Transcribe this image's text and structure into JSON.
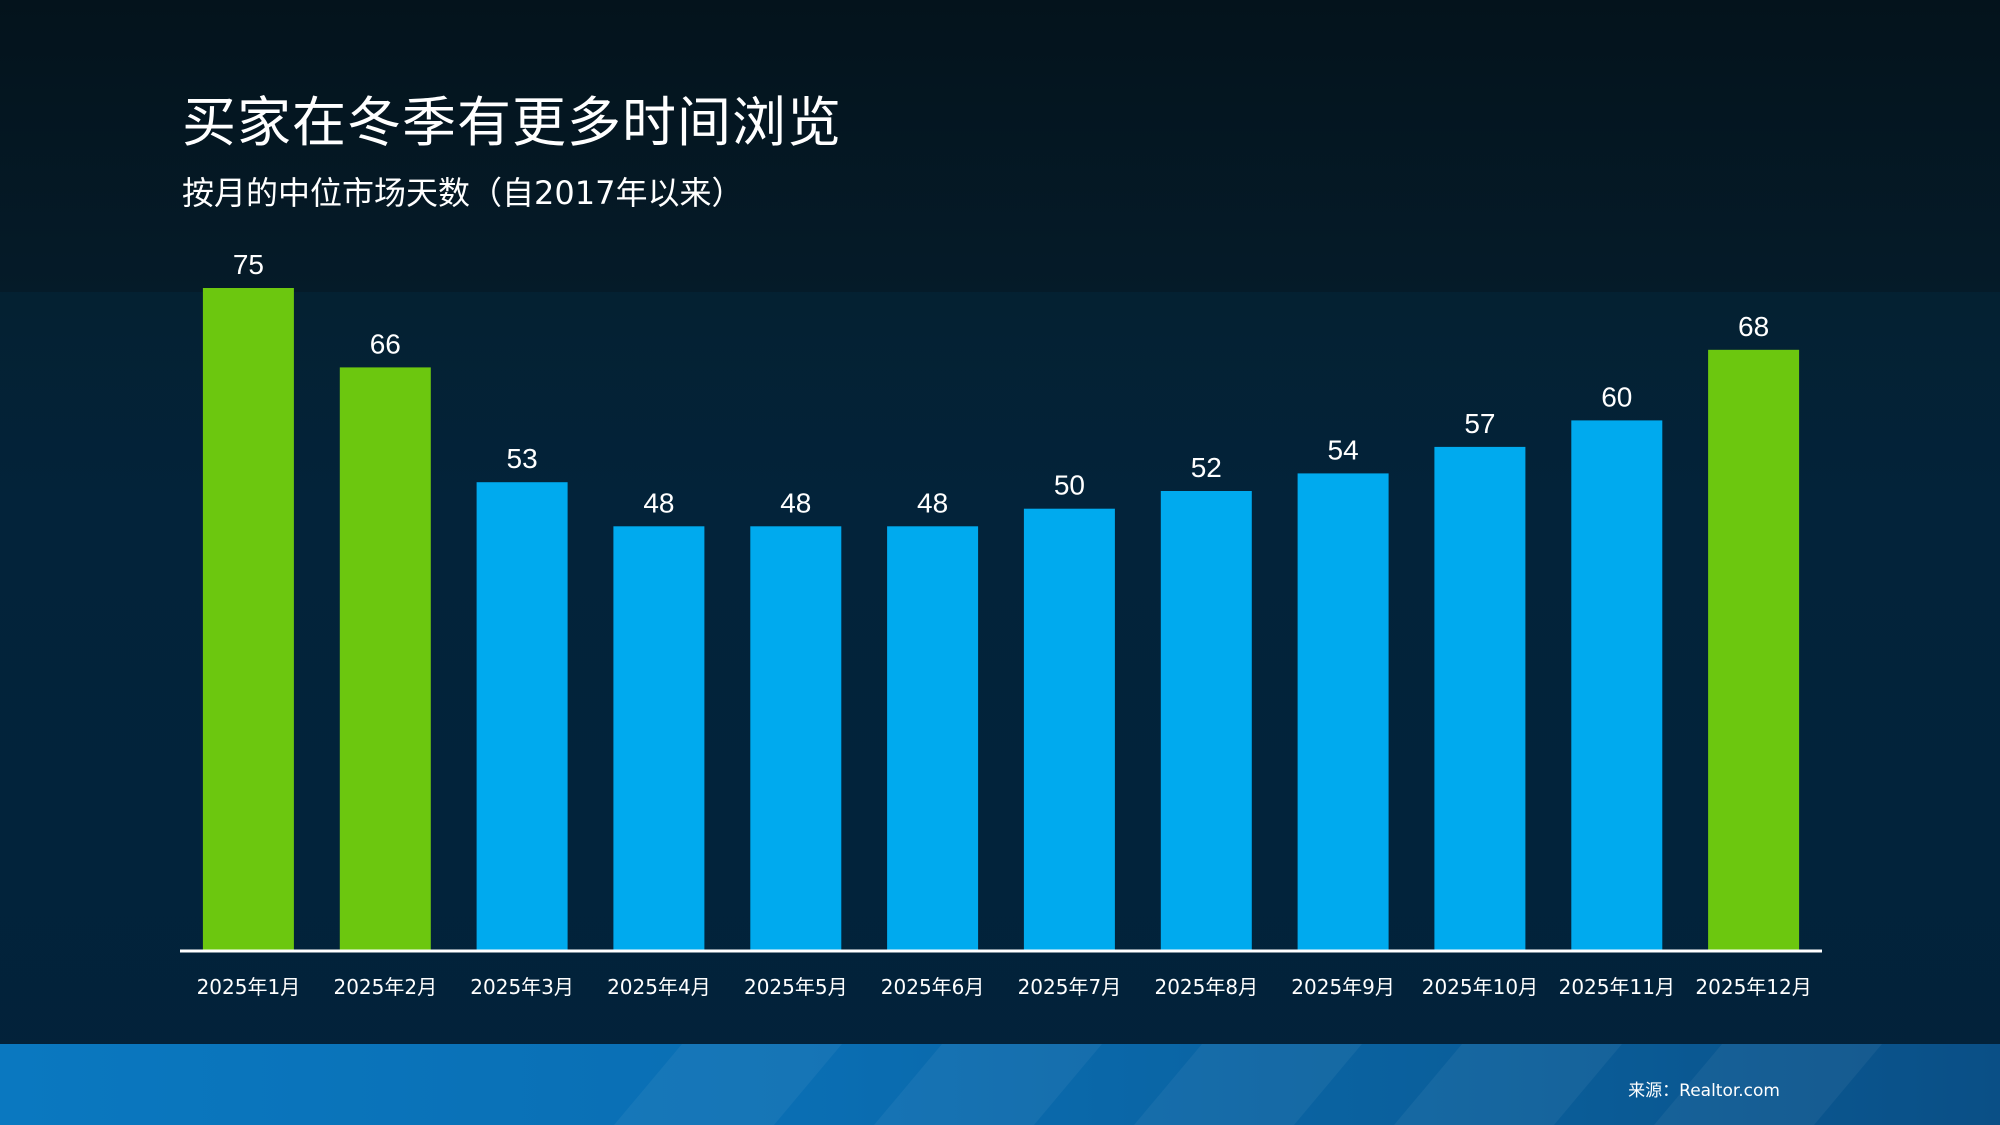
{
  "title": "买家在冬季有更多时间浏览",
  "subtitle": "按月的中位市场天数（自2017年以来）",
  "source": "来源：Realtor.com",
  "colors": {
    "highlight": "#6cc70f",
    "normal": "#00aaee",
    "axis": "#ffffff"
  },
  "chart_data": {
    "type": "bar",
    "categories": [
      "2025年1月",
      "2025年2月",
      "2025年3月",
      "2025年4月",
      "2025年5月",
      "2025年6月",
      "2025年7月",
      "2025年8月",
      "2025年9月",
      "2025年10月",
      "2025年11月",
      "2025年12月"
    ],
    "values": [
      75,
      66,
      53,
      48,
      48,
      48,
      50,
      52,
      54,
      57,
      60,
      68
    ],
    "bar_colors": [
      "#6cc70f",
      "#6cc70f",
      "#00aaee",
      "#00aaee",
      "#00aaee",
      "#00aaee",
      "#00aaee",
      "#00aaee",
      "#00aaee",
      "#00aaee",
      "#00aaee",
      "#6cc70f"
    ],
    "data_labels": true,
    "ylim": [
      0,
      75
    ],
    "grid": false,
    "xlabel": "",
    "ylabel": ""
  }
}
